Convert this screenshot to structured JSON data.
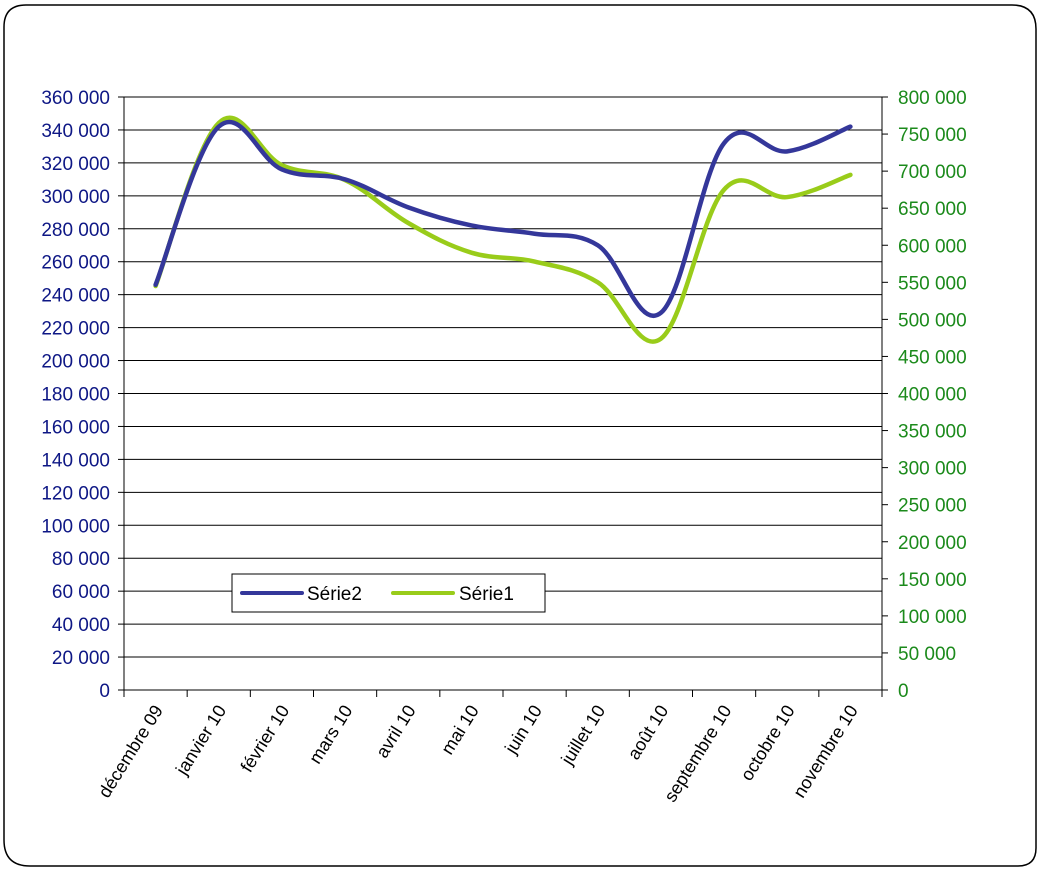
{
  "colors": {
    "left_axis": "#0e1785",
    "right_axis": "#1b8a1b",
    "series2": "#34379a",
    "series1": "#99cc1a",
    "grid": "#000000",
    "frame": "#000000"
  },
  "chart_data": {
    "type": "line",
    "title": "",
    "xlabel": "",
    "ylabel": "",
    "categories": [
      "décembre 09",
      "janvier 10",
      "février 10",
      "mars 10",
      "avril 10",
      "mai 10",
      "juin 10",
      "juillet 10",
      "août 10",
      "septembre 10",
      "octobre 10",
      "novembre 10"
    ],
    "y_left": {
      "min": 0,
      "max": 360000,
      "step": 20000,
      "tick_labels": [
        "0",
        "20 000",
        "40 000",
        "60 000",
        "80 000",
        "100 000",
        "120 000",
        "140 000",
        "160 000",
        "180 000",
        "200 000",
        "220 000",
        "240 000",
        "260 000",
        "280 000",
        "300 000",
        "320 000",
        "340 000",
        "360 000"
      ]
    },
    "y_right": {
      "min": 0,
      "max": 800000,
      "step": 50000,
      "tick_labels": [
        "0",
        "50 000",
        "100 000",
        "150 000",
        "200 000",
        "250 000",
        "300 000",
        "350 000",
        "400 000",
        "450 000",
        "500 000",
        "550 000",
        "600 000",
        "650 000",
        "700 000",
        "750 000",
        "800 000"
      ]
    },
    "grid": true,
    "smooth": true,
    "legend_position": "lower-left",
    "series": [
      {
        "name": "Série2",
        "axis": "left",
        "values": [
          246000,
          342000,
          316000,
          310000,
          293000,
          282000,
          277000,
          270000,
          229000,
          332000,
          327000,
          342000
        ]
      },
      {
        "name": "Série1",
        "axis": "right",
        "values": [
          545000,
          765000,
          708000,
          688000,
          630000,
          590000,
          578000,
          550000,
          474000,
          675000,
          665000,
          695000
        ]
      }
    ]
  }
}
